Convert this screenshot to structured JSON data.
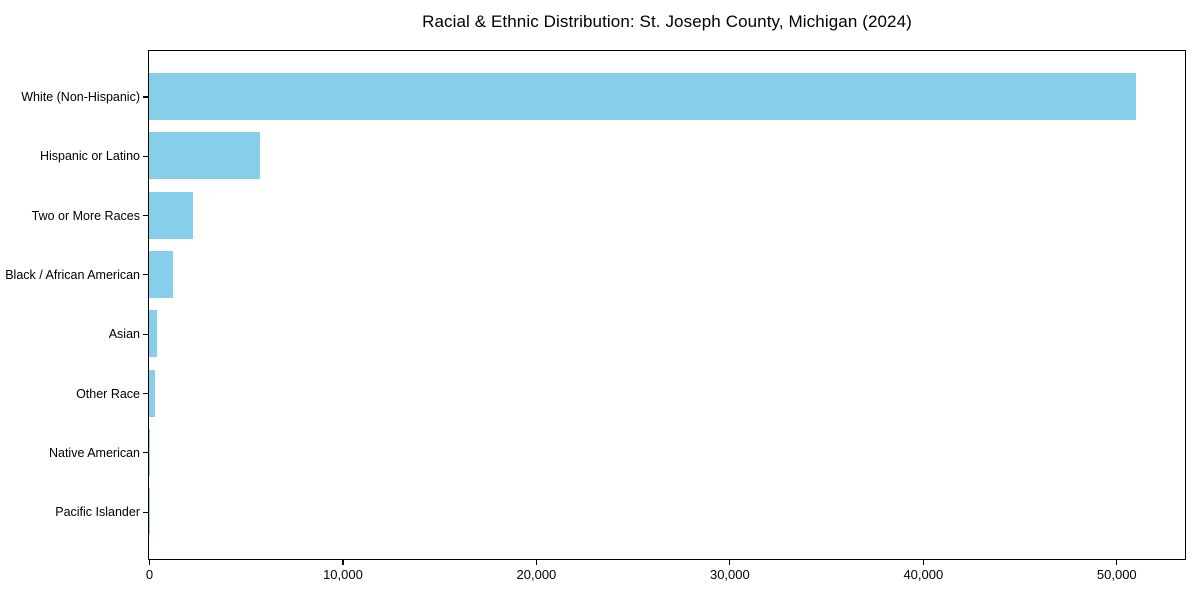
{
  "chart_data": {
    "type": "bar",
    "orientation": "horizontal",
    "title": "Racial & Ethnic Distribution: St. Joseph County, Michigan (2024)",
    "categories": [
      "White (Non-Hispanic)",
      "Hispanic or Latino",
      "Two or More Races",
      "Black / African American",
      "Asian",
      "Other Race",
      "Native American",
      "Pacific Islander"
    ],
    "values": [
      51000,
      5750,
      2300,
      1250,
      420,
      310,
      40,
      10
    ],
    "xlabel": "",
    "ylabel": "",
    "xlim": [
      0,
      53500
    ],
    "xticks": [
      0,
      10000,
      20000,
      30000,
      40000,
      50000
    ],
    "xtick_labels": [
      "0",
      "10,000",
      "20,000",
      "30,000",
      "40,000",
      "50,000"
    ],
    "bar_color": "#87CEEB",
    "axis_color": "#000000",
    "background_color": "#FFFFFF",
    "grid": false,
    "legend": "none"
  }
}
